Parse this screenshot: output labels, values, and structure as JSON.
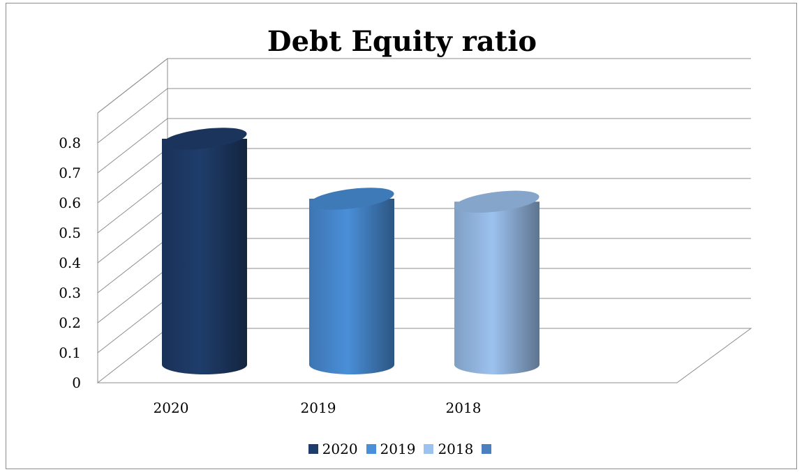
{
  "chart_data": {
    "type": "bar",
    "style": "3d-cylinder",
    "title": "Debt Equity ratio",
    "categories": [
      "2020",
      "2019",
      "2018"
    ],
    "series": [
      {
        "name": "2020",
        "color": "#1f3d6b"
      },
      {
        "name": "2019",
        "color": "#4a8fd9"
      },
      {
        "name": "2018",
        "color": "#9cc2ef"
      },
      {
        "name": "",
        "color": "#4b7fc0"
      }
    ],
    "values": [
      0.8,
      0.6,
      0.59
    ],
    "bar_colors": [
      "#1f3d6b",
      "#4a8fd9",
      "#9cc2ef"
    ],
    "yticks": [
      "0",
      "0.1",
      "0.2",
      "0.3",
      "0.4",
      "0.5",
      "0.6",
      "0.7",
      "0.8"
    ],
    "ylim": [
      0,
      0.9
    ],
    "grid": true,
    "legend_position": "bottom"
  }
}
